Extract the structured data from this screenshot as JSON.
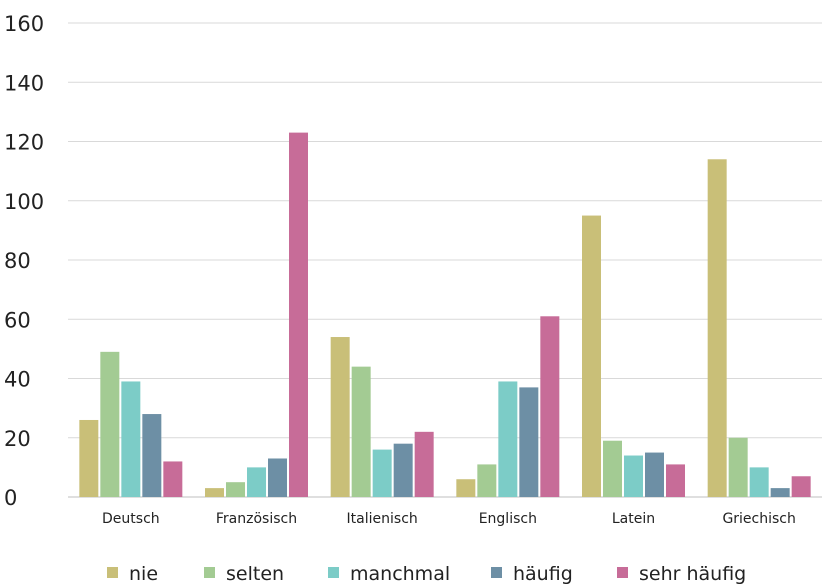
{
  "chart_data": {
    "type": "bar",
    "categories": [
      "Deutsch",
      "Französisch",
      "Italienisch",
      "Englisch",
      "Latein",
      "Griechisch"
    ],
    "series": [
      {
        "name": "nie",
        "color": "#c9bf78",
        "values": [
          26,
          3,
          54,
          6,
          95,
          114
        ]
      },
      {
        "name": "selten",
        "color": "#a3cb93",
        "values": [
          49,
          5,
          44,
          11,
          19,
          20
        ]
      },
      {
        "name": "manchmal",
        "color": "#7cccc7",
        "values": [
          39,
          10,
          16,
          39,
          14,
          10
        ]
      },
      {
        "name": "häufig",
        "color": "#6d8fa5",
        "values": [
          28,
          13,
          18,
          37,
          15,
          3
        ]
      },
      {
        "name": "sehr häufig",
        "color": "#c76c98",
        "values": [
          12,
          123,
          22,
          61,
          11,
          7
        ]
      }
    ],
    "yticks": [
      0,
      20,
      40,
      60,
      80,
      100,
      120,
      140,
      160
    ],
    "ylim": [
      0,
      160
    ],
    "grid": true,
    "legend_position": "bottom"
  }
}
